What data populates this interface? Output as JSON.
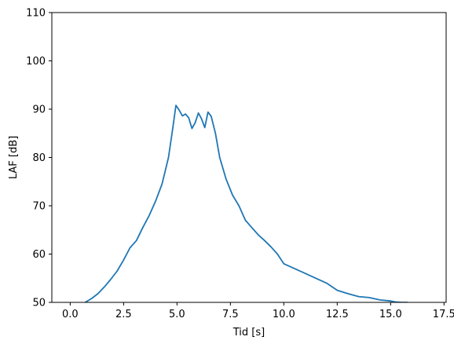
{
  "chart_data": {
    "type": "line",
    "title": "",
    "xlabel": "Tid [s]",
    "ylabel": "LAF [dB]",
    "xlim": [
      -0.86,
      17.6
    ],
    "ylim": [
      50,
      110
    ],
    "xticks": [
      0.0,
      2.5,
      5.0,
      7.5,
      10.0,
      12.5,
      15.0,
      17.5
    ],
    "xtick_labels": [
      "0.0",
      "2.5",
      "5.0",
      "7.5",
      "10.0",
      "12.5",
      "15.0",
      "17.5"
    ],
    "yticks": [
      50,
      60,
      70,
      80,
      90,
      100,
      110
    ],
    "ytick_labels": [
      "50",
      "60",
      "70",
      "80",
      "90",
      "100",
      "110"
    ],
    "grid": false,
    "series": [
      {
        "color": "#1f77b4",
        "x": [
          0.7,
          1.0,
          1.3,
          1.6,
          1.9,
          2.2,
          2.5,
          2.8,
          3.1,
          3.4,
          3.7,
          4.0,
          4.3,
          4.6,
          4.8,
          4.95,
          5.1,
          5.25,
          5.4,
          5.55,
          5.7,
          5.85,
          6.0,
          6.15,
          6.3,
          6.45,
          6.6,
          6.8,
          7.0,
          7.3,
          7.6,
          7.9,
          8.2,
          8.5,
          8.8,
          9.1,
          9.4,
          9.7,
          10.0,
          10.5,
          11.0,
          11.5,
          12.0,
          12.5,
          13.0,
          13.5,
          14.0,
          14.5,
          15.0,
          15.2,
          15.5,
          15.8
        ],
        "y": [
          50.0,
          50.8,
          51.8,
          53.2,
          54.8,
          56.5,
          58.8,
          61.3,
          62.8,
          65.5,
          68.0,
          71.0,
          74.5,
          80.0,
          86.0,
          90.8,
          89.8,
          88.6,
          89.0,
          88.2,
          86.0,
          87.2,
          89.2,
          88.0,
          86.2,
          89.4,
          88.5,
          85.0,
          80.0,
          75.5,
          72.2,
          70.0,
          67.0,
          65.5,
          64.0,
          62.8,
          61.5,
          60.0,
          58.0,
          57.0,
          56.0,
          55.0,
          54.0,
          52.5,
          51.8,
          51.2,
          51.0,
          50.5,
          50.3,
          50.1,
          50.0,
          50.0
        ]
      }
    ]
  }
}
